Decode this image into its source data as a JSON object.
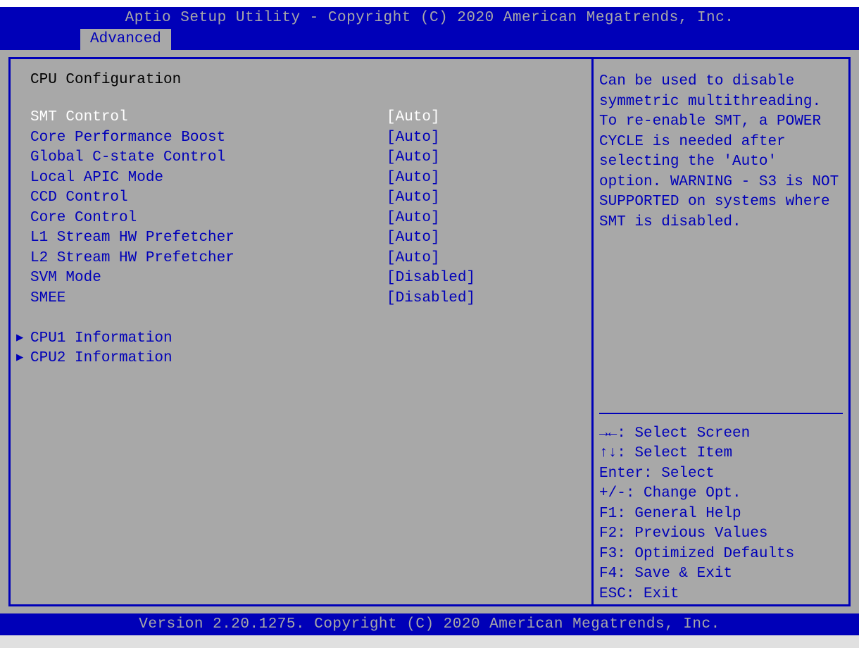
{
  "colors": {
    "header_bg": "#0000b8",
    "header_text": "#a8a8a8",
    "panel_bg": "#a8a8a8",
    "border": "#0000b8",
    "title_text": "#000000",
    "normal_text": "#0000b8",
    "selected_text": "#ffffff"
  },
  "header": {
    "title": "Aptio Setup Utility - Copyright (C) 2020 American Megatrends, Inc."
  },
  "tabs": {
    "active": "Advanced"
  },
  "main": {
    "section_title": "CPU Configuration",
    "settings": [
      {
        "label": "SMT Control",
        "value": "[Auto]",
        "selected": true
      },
      {
        "label": "Core Performance Boost",
        "value": "[Auto]",
        "selected": false
      },
      {
        "label": "Global C-state Control",
        "value": "[Auto]",
        "selected": false
      },
      {
        "label": "Local APIC Mode",
        "value": "[Auto]",
        "selected": false
      },
      {
        "label": "CCD Control",
        "value": "[Auto]",
        "selected": false
      },
      {
        "label": "Core Control",
        "value": "[Auto]",
        "selected": false
      },
      {
        "label": "L1 Stream HW Prefetcher",
        "value": "[Auto]",
        "selected": false
      },
      {
        "label": "L2 Stream HW Prefetcher",
        "value": "[Auto]",
        "selected": false
      },
      {
        "label": "SVM Mode",
        "value": "[Disabled]",
        "selected": false
      },
      {
        "label": "SMEE",
        "value": "[Disabled]",
        "selected": false
      }
    ],
    "submenus": [
      {
        "label": "CPU1 Information"
      },
      {
        "label": "CPU2 Information"
      }
    ]
  },
  "help": {
    "text": "Can be used to disable symmetric multithreading. To re-enable SMT, a POWER CYCLE is needed after selecting the 'Auto' option. WARNING - S3 is NOT SUPPORTED on systems where SMT is disabled."
  },
  "nav": {
    "items": [
      {
        "key": "→←",
        "label": ": Select Screen"
      },
      {
        "key": "↑↓",
        "label": ": Select Item"
      },
      {
        "key": "Enter",
        "label": ": Select"
      },
      {
        "key": "+/-",
        "label": ": Change Opt."
      },
      {
        "key": "F1",
        "label": ": General Help"
      },
      {
        "key": "F2",
        "label": ": Previous Values"
      },
      {
        "key": "F3",
        "label": ": Optimized Defaults"
      },
      {
        "key": "F4",
        "label": ": Save & Exit"
      },
      {
        "key": "ESC",
        "label": ": Exit"
      }
    ]
  },
  "footer": {
    "text": "Version 2.20.1275. Copyright (C) 2020 American Megatrends, Inc."
  }
}
